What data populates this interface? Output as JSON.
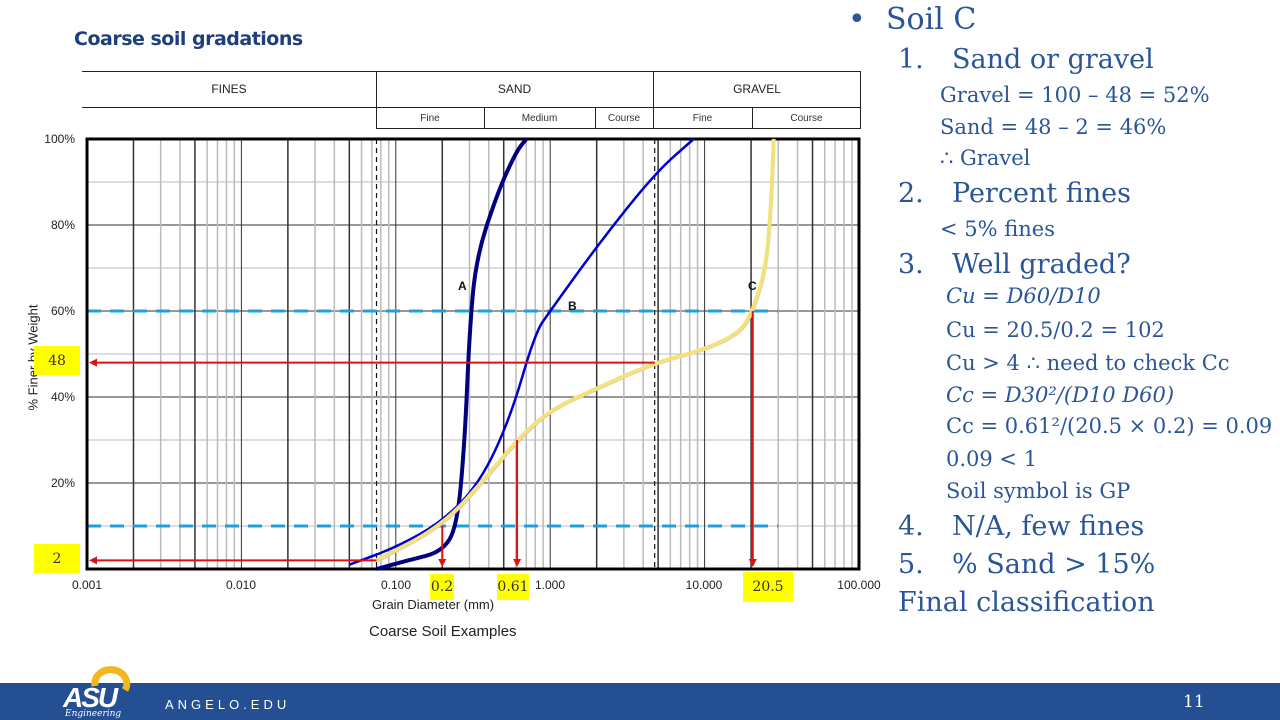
{
  "slide": {
    "title": "Coarse soil gradations",
    "page_number": "11",
    "footer_url": "ANGELO.EDU",
    "logo": {
      "text": "ASU",
      "subtitle": "Engineering"
    }
  },
  "classification_table": {
    "top": [
      "FINES",
      "SAND",
      "GRAVEL"
    ],
    "sub": {
      "sand": [
        "Fine",
        "Medium",
        "Course"
      ],
      "gravel": [
        "Fine",
        "Course"
      ]
    }
  },
  "chart_data": {
    "type": "line",
    "title": "Coarse Soil Examples",
    "xlabel": "Grain Diameter (mm)",
    "ylabel": "% Finer by Weight",
    "x_scale": "log",
    "xlim": [
      0.001,
      100
    ],
    "ylim": [
      0,
      100
    ],
    "x_ticks": [
      "0.001",
      "0.010",
      "0.100",
      "1.000",
      "10.000",
      "100.000"
    ],
    "y_ticks": [
      "0%",
      "20%",
      "40%",
      "60%",
      "80%",
      "100%"
    ],
    "grid": true,
    "boundary_lines_mm": [
      0.075,
      4.75
    ],
    "series": [
      {
        "name": "A",
        "color": "#000080",
        "points": [
          [
            0.075,
            0
          ],
          [
            0.12,
            2
          ],
          [
            0.2,
            4
          ],
          [
            0.25,
            10
          ],
          [
            0.28,
            30
          ],
          [
            0.3,
            55
          ],
          [
            0.33,
            72
          ],
          [
            0.45,
            87
          ],
          [
            0.6,
            97
          ],
          [
            0.7,
            100
          ]
        ]
      },
      {
        "name": "B",
        "color": "#0000cc",
        "points": [
          [
            0.05,
            1
          ],
          [
            0.1,
            5
          ],
          [
            0.2,
            11
          ],
          [
            0.35,
            20
          ],
          [
            0.55,
            35
          ],
          [
            0.8,
            55
          ],
          [
            1.0,
            60
          ],
          [
            2.0,
            75
          ],
          [
            4.75,
            92
          ],
          [
            8.5,
            100
          ]
        ]
      },
      {
        "name": "C",
        "color": "#f3e27a",
        "points": [
          [
            0.075,
            2
          ],
          [
            0.2,
            10
          ],
          [
            0.4,
            22
          ],
          [
            0.61,
            30
          ],
          [
            1.0,
            37
          ],
          [
            2.0,
            42
          ],
          [
            4.75,
            48
          ],
          [
            10,
            51
          ],
          [
            17,
            55
          ],
          [
            20.5,
            60
          ],
          [
            25,
            70
          ],
          [
            27,
            85
          ],
          [
            28,
            100
          ]
        ]
      }
    ],
    "reference_lines": [
      {
        "type": "horizontal",
        "y": 60,
        "style": "dashed",
        "color": "#1fa0d8"
      },
      {
        "type": "horizontal",
        "y": 10,
        "style": "dashed",
        "color": "#1fa0d8"
      }
    ],
    "annotations": [
      {
        "label": "48",
        "y": 48,
        "arrow": "left",
        "from_x": 4.75
      },
      {
        "label": "2",
        "y": 2,
        "arrow": "left",
        "from_x": 0.075
      },
      {
        "label": "0.2",
        "x": 0.2,
        "arrow": "down",
        "from_y": 10
      },
      {
        "label": "0.61",
        "x": 0.61,
        "arrow": "down",
        "from_y": 30
      },
      {
        "label": "20.5",
        "x": 20.5,
        "arrow": "down",
        "from_y": 60
      }
    ],
    "curve_labels": [
      "A",
      "B",
      "C"
    ]
  },
  "notes": {
    "bullet": "Soil C",
    "items": [
      {
        "n": "1.",
        "text": "Sand or gravel"
      },
      {
        "text": "Gravel = 100 – 48 = 52%"
      },
      {
        "text": "Sand = 48 – 2 = 46%"
      },
      {
        "text": "∴ Gravel"
      },
      {
        "n": "2.",
        "text": "Percent fines"
      },
      {
        "text": "< 5% fines"
      },
      {
        "n": "3.",
        "text": "Well graded?"
      },
      {
        "text": "Cu = D60/D10"
      },
      {
        "text": "Cu = 20.5/0.2 = 102"
      },
      {
        "text": "Cu > 4 ∴ need to check Cc"
      },
      {
        "text": "Cc = D30²/(D10 D60)"
      },
      {
        "text": "Cc = 0.61²/(20.5 × 0.2) = 0.09"
      },
      {
        "text": "0.09 < 1"
      },
      {
        "text": "Soil symbol is GP"
      },
      {
        "n": "4.",
        "text": "N/A, few fines"
      },
      {
        "n": "5.",
        "text": "% Sand > 15%"
      },
      {
        "text": "Final classification"
      }
    ]
  }
}
